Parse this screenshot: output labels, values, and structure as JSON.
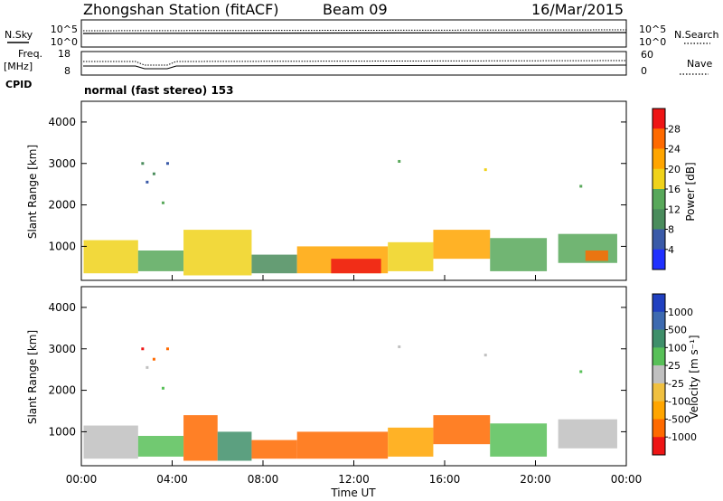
{
  "header": {
    "station": "Zhongshan Station (fitACF)",
    "beam": "Beam 09",
    "date": "16/Mar/2015"
  },
  "nsky_panel": {
    "left_label": "N.Sky",
    "left_ticks": [
      "10^5",
      "10^0"
    ],
    "right_ticks": [
      "10^5",
      "10^0"
    ],
    "right_label": "N.Search"
  },
  "freq_panel": {
    "left_label_1": "Freq.",
    "left_label_2": "[MHz]",
    "left_ticks": [
      "18",
      "8"
    ],
    "right_ticks": [
      "60",
      "0"
    ],
    "right_label": "Nave",
    "cpid_label": "CPID",
    "cpid_value": "normal (fast stereo) 153"
  },
  "colors": {
    "power": [
      "#2030ff",
      "#3a5aa8",
      "#4a8c5c",
      "#58a85a",
      "#f0d21a",
      "#ffa500",
      "#ff6a00",
      "#ee1515"
    ],
    "velocity": [
      "#ee1515",
      "#ff6a00",
      "#ffa500",
      "#f0c040",
      "#c0c0c0",
      "#58c058",
      "#3f8f6a",
      "#3d6ab0",
      "#2040c0"
    ]
  },
  "chart_data": [
    {
      "type": "heatmap",
      "panel": "power",
      "ylabel": "Slant Range [km]",
      "xlabel": "Time UT",
      "x_ticks": [
        "00:00",
        "04:00",
        "08:00",
        "12:00",
        "16:00",
        "20:00",
        "00:00"
      ],
      "xlim_hours": [
        0,
        24
      ],
      "y_ticks": [
        "1000",
        "2000",
        "3000",
        "4000"
      ],
      "ylim_km": [
        180,
        4500
      ],
      "colorbar_label": "Power [dB]",
      "colorbar_ticks": [
        "4",
        "8",
        "12",
        "16",
        "20",
        "24",
        "28"
      ],
      "colorbar_range": [
        0,
        32
      ],
      "regions": [
        {
          "t0": 0.1,
          "t1": 2.5,
          "r0": 350,
          "r1": 1150,
          "value": 18
        },
        {
          "t0": 2.5,
          "t1": 4.5,
          "r0": 400,
          "r1": 900,
          "value": 14
        },
        {
          "t0": 4.5,
          "t1": 7.5,
          "r0": 300,
          "r1": 1400,
          "value": 16
        },
        {
          "t0": 7.5,
          "t1": 9.5,
          "r0": 350,
          "r1": 800,
          "value": 10
        },
        {
          "t0": 9.5,
          "t1": 13.5,
          "r0": 350,
          "r1": 1000,
          "value": 22
        },
        {
          "t0": 11.0,
          "t1": 13.2,
          "r0": 350,
          "r1": 700,
          "value": 28
        },
        {
          "t0": 13.5,
          "t1": 15.5,
          "r0": 400,
          "r1": 1100,
          "value": 16
        },
        {
          "t0": 15.5,
          "t1": 18.0,
          "r0": 700,
          "r1": 1400,
          "value": 20
        },
        {
          "t0": 18.0,
          "t1": 20.5,
          "r0": 400,
          "r1": 1200,
          "value": 12
        },
        {
          "t0": 21.0,
          "t1": 23.6,
          "r0": 600,
          "r1": 1300,
          "value": 14
        },
        {
          "t0": 22.2,
          "t1": 23.2,
          "r0": 650,
          "r1": 900,
          "value": 26
        }
      ],
      "sparse_points": [
        {
          "t": 2.7,
          "r": 3000,
          "value": 10
        },
        {
          "t": 2.9,
          "r": 2550,
          "value": 6
        },
        {
          "t": 3.2,
          "r": 2750,
          "value": 8
        },
        {
          "t": 3.8,
          "r": 3000,
          "value": 4
        },
        {
          "t": 3.6,
          "r": 2050,
          "value": 12
        },
        {
          "t": 14.0,
          "r": 3050,
          "value": 12
        },
        {
          "t": 17.8,
          "r": 2850,
          "value": 16
        },
        {
          "t": 22.0,
          "r": 2450,
          "value": 12
        }
      ]
    },
    {
      "type": "heatmap",
      "panel": "velocity",
      "ylabel": "Slant Range [km]",
      "xlabel": "Time UT",
      "x_ticks": [
        "00:00",
        "04:00",
        "08:00",
        "12:00",
        "16:00",
        "20:00",
        "00:00"
      ],
      "xlim_hours": [
        0,
        24
      ],
      "y_ticks": [
        "1000",
        "2000",
        "3000",
        "4000"
      ],
      "ylim_km": [
        180,
        4500
      ],
      "colorbar_label": "Velocity [m s⁻¹]",
      "colorbar_ticks": [
        "1000",
        "500",
        "100",
        "25",
        "-25",
        "-100",
        "-500",
        "-1000"
      ],
      "regions": [
        {
          "t0": 0.1,
          "t1": 2.5,
          "r0": 350,
          "r1": 1150,
          "value": 100
        },
        {
          "t0": 2.5,
          "t1": 4.5,
          "r0": 400,
          "r1": 900,
          "value": 200
        },
        {
          "t0": 4.5,
          "t1": 6.0,
          "r0": 300,
          "r1": 1400,
          "value": -300
        },
        {
          "t0": 6.0,
          "t1": 7.5,
          "r0": 300,
          "r1": 1000,
          "value": 800
        },
        {
          "t0": 7.5,
          "t1": 9.5,
          "r0": 350,
          "r1": 800,
          "value": -150
        },
        {
          "t0": 9.5,
          "t1": 13.5,
          "r0": 350,
          "r1": 1000,
          "value": -300
        },
        {
          "t0": 13.5,
          "t1": 15.5,
          "r0": 400,
          "r1": 1100,
          "value": -80
        },
        {
          "t0": 15.5,
          "t1": 18.0,
          "r0": 700,
          "r1": 1400,
          "value": -400
        },
        {
          "t0": 18.0,
          "t1": 20.5,
          "r0": 400,
          "r1": 1200,
          "value": 150
        },
        {
          "t0": 21.0,
          "t1": 23.6,
          "r0": 600,
          "r1": 1300,
          "value": 50
        }
      ],
      "sparse_points": [
        {
          "t": 2.7,
          "r": 3000,
          "value": -700
        },
        {
          "t": 2.9,
          "r": 2550,
          "value": 100
        },
        {
          "t": 3.2,
          "r": 2750,
          "value": -200
        },
        {
          "t": 3.8,
          "r": 3000,
          "value": -200
        },
        {
          "t": 3.6,
          "r": 2050,
          "value": 150
        },
        {
          "t": 14.0,
          "r": 3050,
          "value": 100
        },
        {
          "t": 17.8,
          "r": 2850,
          "value": 100
        },
        {
          "t": 22.0,
          "r": 2450,
          "value": 150
        }
      ]
    }
  ]
}
